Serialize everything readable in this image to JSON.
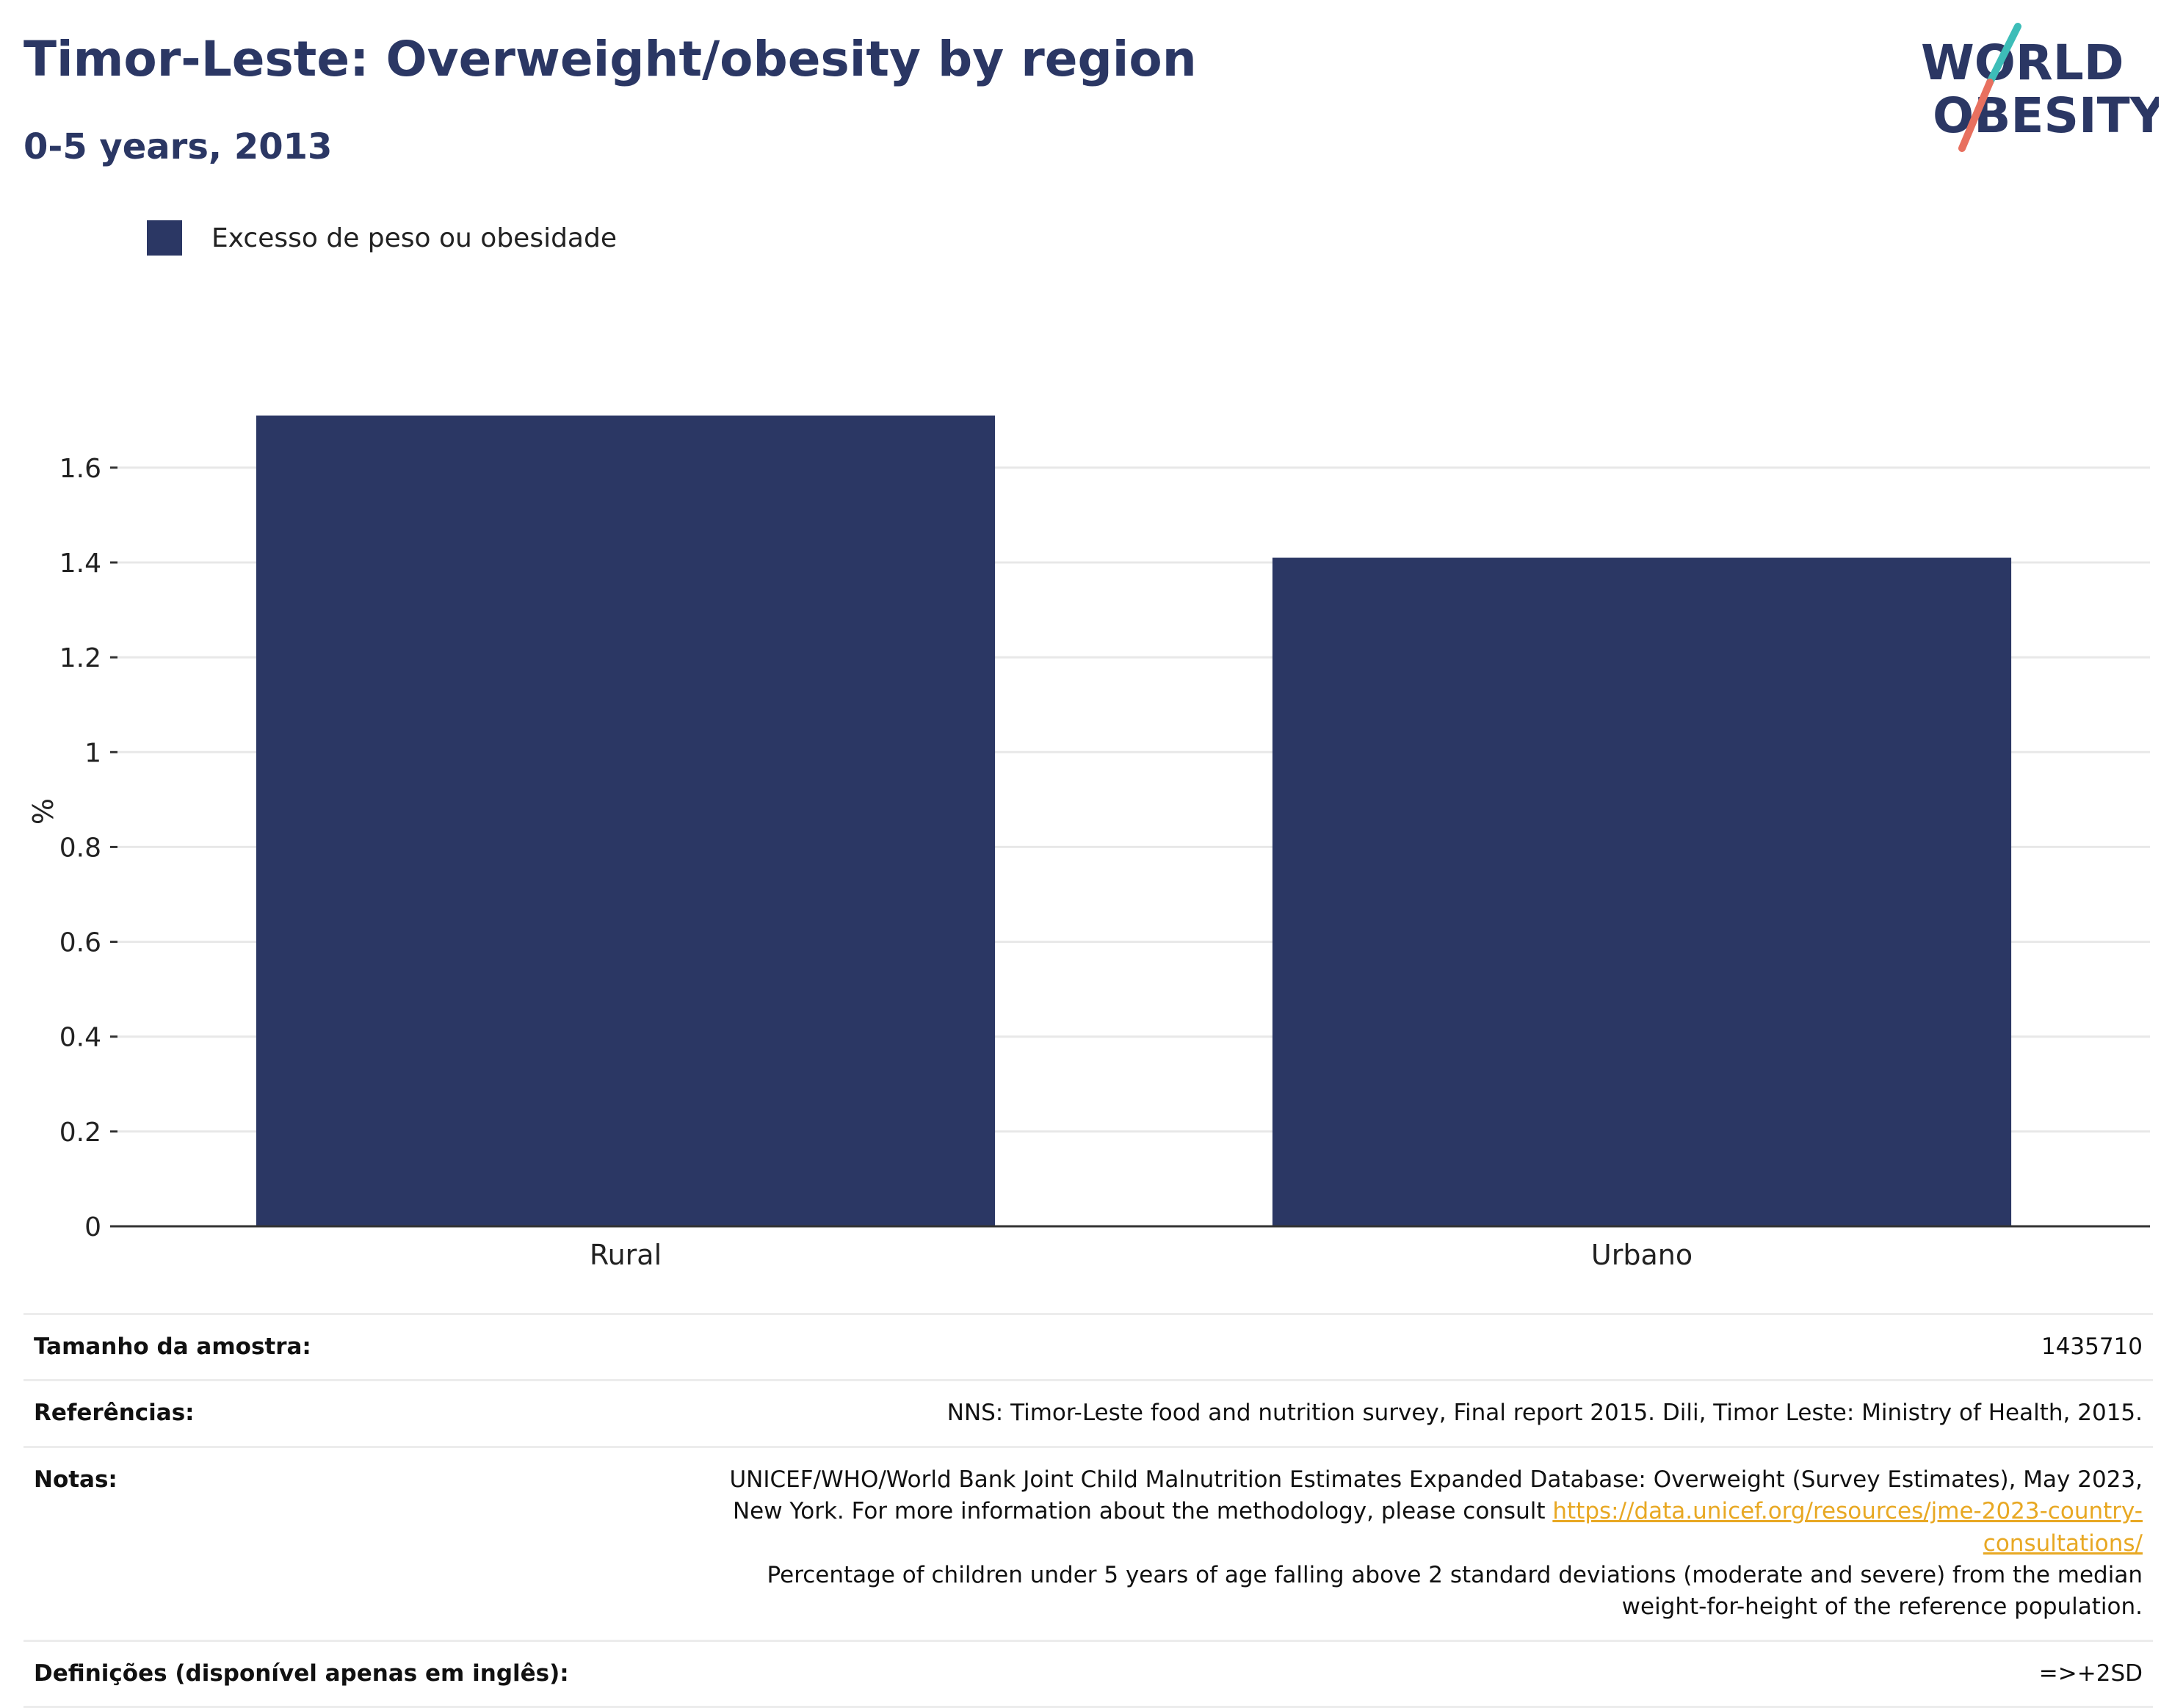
{
  "header": {
    "title": "Timor-Leste: Overweight/obesity by region",
    "subtitle": "0-5 years, 2013"
  },
  "logo": {
    "line1": "WORLD",
    "line2": "OBESITY",
    "accent_teal": "#3dbdb8",
    "accent_coral": "#e8705f",
    "text_color": "#2b3764"
  },
  "chart_data": {
    "type": "bar",
    "categories": [
      "Rural",
      "Urbano"
    ],
    "series": [
      {
        "name": "Excesso de peso ou obesidade",
        "values": [
          1.71,
          1.41
        ],
        "color": "#2b3764"
      }
    ],
    "ylabel": "%",
    "ylim": [
      0,
      1.75
    ],
    "yticks": [
      0,
      0.2,
      0.4,
      0.6,
      0.8,
      1,
      1.2,
      1.4,
      1.6
    ],
    "ytick_labels": [
      "0",
      "0.2",
      "0.4",
      "0.6",
      "0.8",
      "1",
      "1.2",
      "1.4",
      "1.6"
    ],
    "grid": true,
    "legend_position": "top-left"
  },
  "info": {
    "sample_label": "Tamanho da amostra:",
    "sample_value": "1435710",
    "references_label": "Referências:",
    "references_value": "NNS: Timor-Leste food and nutrition survey, Final report 2015. Dili, Timor Leste: Ministry of Health, 2015.",
    "notes_label": "Notas:",
    "notes_text1": "UNICEF/WHO/World Bank Joint Child Malnutrition Estimates Expanded Database: Overweight (Survey Estimates), May 2023, New York. For more information about the methodology, please consult",
    "notes_link": "https://data.unicef.org/resources/jme-2023-country-consultations/",
    "notes_text2": "Percentage of children under 5 years of age falling above 2 standard deviations (moderate and severe) from the median weight-for-height of the reference population.",
    "definitions_label": "Definições (disponível apenas em inglês):",
    "definitions_value": "=>+2SD"
  }
}
